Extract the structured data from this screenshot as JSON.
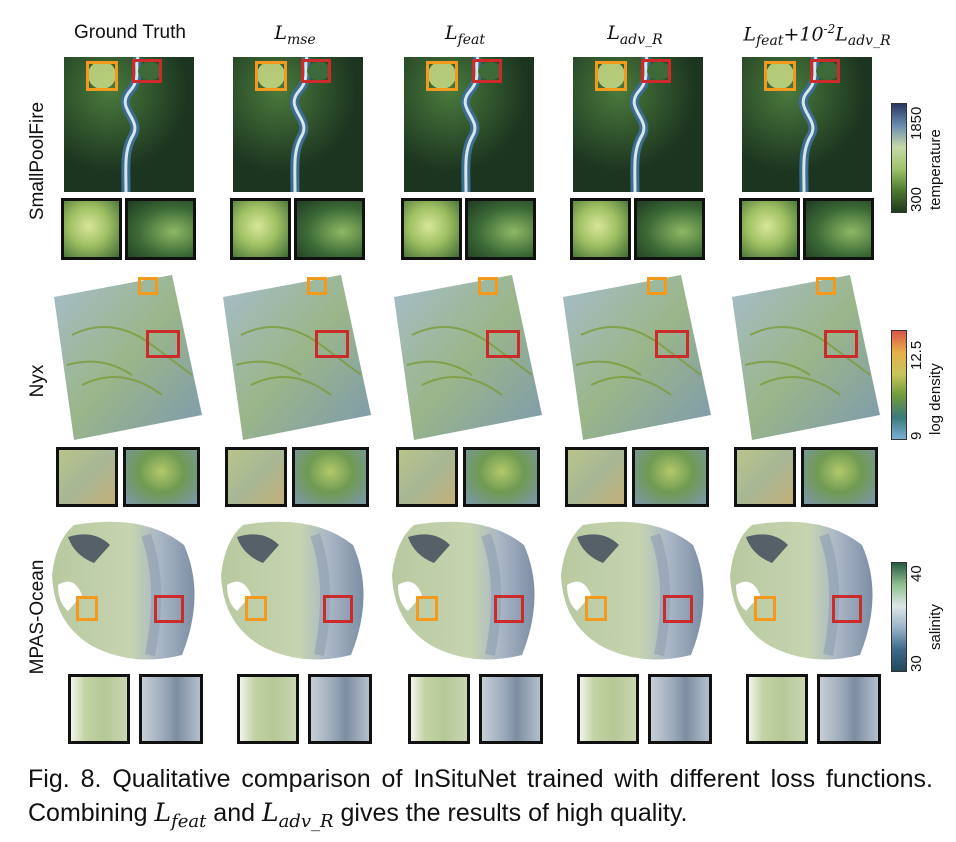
{
  "columns": [
    {
      "label": "Ground Truth"
    },
    {
      "label": "L",
      "sub": "mse"
    },
    {
      "label": "L",
      "sub": "feat"
    },
    {
      "label": "L",
      "sub": "adv_R"
    },
    {
      "label": "L",
      "sub": "feat",
      "mid": "+10",
      "sup": "-2",
      "label2": "L",
      "sub2": "adv_R"
    }
  ],
  "rows": [
    {
      "label": "SmallPoolFire",
      "colorbar": {
        "max": "1850",
        "min": "300",
        "title": "temperature"
      }
    },
    {
      "label": "Nyx",
      "colorbar": {
        "max": "12.5",
        "min": "9",
        "title": "log density"
      }
    },
    {
      "label": "MPAS-Ocean",
      "colorbar": {
        "max": "40",
        "min": "30",
        "title": "salinity"
      }
    }
  ],
  "caption": {
    "part1": "Fig. 8.  Qualitative comparison of InSituNet trained with different loss functions. Combining ",
    "sym1": "L",
    "sub1": "feat",
    "part2": " and ",
    "sym2": "L",
    "sub2": "adv_R",
    "part3": " gives the results of high quality."
  },
  "colors": {
    "orange": "#f39a1e",
    "red": "#cc2b2b",
    "fire_bg": "#1e3a22",
    "fire_plume": "#b9d07a"
  }
}
